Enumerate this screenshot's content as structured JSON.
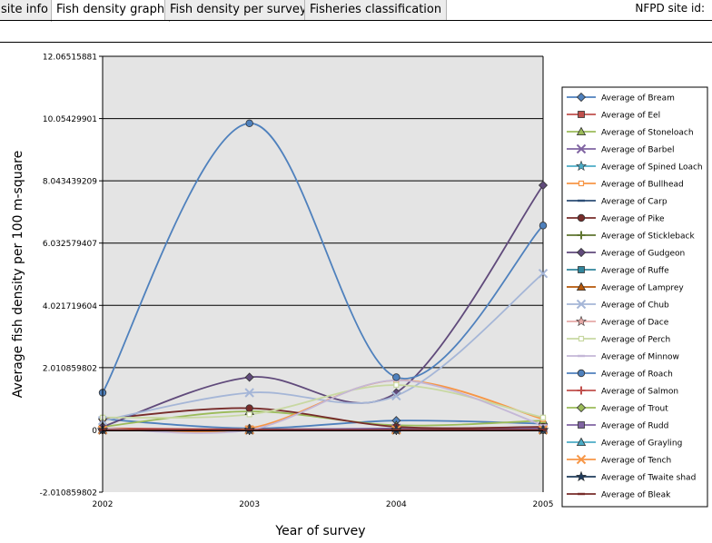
{
  "tabs": [
    {
      "label": "site info",
      "active": false
    },
    {
      "label": "Fish density graph",
      "active": true
    },
    {
      "label": "Fish density per survey",
      "active": false
    },
    {
      "label": "Fisheries classification",
      "active": false
    }
  ],
  "site_id_label": "NFPD site id:",
  "chart_data": {
    "type": "line",
    "xlabel": "Year of survey",
    "ylabel": "Average fish density per 100 m-square",
    "categories": [
      "2002",
      "2003",
      "2004",
      "2005"
    ],
    "yticks": [
      "12.06515881",
      "10.05429901",
      "8.043439209",
      "6.032579407",
      "4.021719604",
      "2.010859802",
      "0",
      "-2.010859802"
    ],
    "ylim": [
      -2.010859802,
      12.06515881
    ],
    "grid": true,
    "legend_position": "right",
    "smooth": true,
    "series": [
      {
        "name": "Average of Bream",
        "color": "#4f81bd",
        "marker": "diamond",
        "values": [
          0.35,
          0.05,
          0.3,
          0.2
        ]
      },
      {
        "name": "Average of Eel",
        "color": "#c0504d",
        "marker": "square",
        "values": [
          0.05,
          0.02,
          0.03,
          0.02
        ]
      },
      {
        "name": "Average of Stoneloach",
        "color": "#9bbb59",
        "marker": "triangle",
        "values": [
          0.1,
          0.6,
          0.15,
          0.3
        ]
      },
      {
        "name": "Average of Barbel",
        "color": "#8064a2",
        "marker": "x",
        "values": [
          0.0,
          0.0,
          0.05,
          0.05
        ]
      },
      {
        "name": "Average of Spined Loach",
        "color": "#4bacc6",
        "marker": "star",
        "values": [
          0.0,
          0.0,
          0.0,
          0.0
        ]
      },
      {
        "name": "Average of Bullhead",
        "color": "#f79646",
        "marker": "smallsquare",
        "values": [
          0.05,
          0.05,
          1.6,
          0.35
        ]
      },
      {
        "name": "Average of Carp",
        "color": "#2c4d75",
        "marker": "dash",
        "values": [
          0.0,
          0.0,
          0.0,
          0.0
        ]
      },
      {
        "name": "Average of Pike",
        "color": "#772c2a",
        "marker": "circle",
        "values": [
          0.35,
          0.7,
          0.1,
          0.1
        ]
      },
      {
        "name": "Average of Stickleback",
        "color": "#5f7530",
        "marker": "plus",
        "values": [
          0.0,
          0.0,
          0.0,
          0.0
        ]
      },
      {
        "name": "Average of Gudgeon",
        "color": "#604a7b",
        "marker": "diamond",
        "values": [
          0.1,
          1.7,
          1.2,
          7.9
        ]
      },
      {
        "name": "Average of Ruffe",
        "color": "#31859c",
        "marker": "square",
        "values": [
          0.0,
          0.0,
          0.0,
          0.0
        ]
      },
      {
        "name": "Average of Lamprey",
        "color": "#b65708",
        "marker": "triangle",
        "values": [
          0.0,
          0.0,
          0.0,
          0.0
        ]
      },
      {
        "name": "Average of Chub",
        "color": "#a5b6d7",
        "marker": "x",
        "values": [
          0.3,
          1.2,
          1.1,
          5.05
        ]
      },
      {
        "name": "Average of Dace",
        "color": "#e6a9a7",
        "marker": "star",
        "values": [
          0.0,
          0.0,
          0.0,
          0.0
        ]
      },
      {
        "name": "Average of Perch",
        "color": "#c8d8a2",
        "marker": "smallsquare",
        "values": [
          0.4,
          0.5,
          1.45,
          0.4
        ]
      },
      {
        "name": "Average of Minnow",
        "color": "#c4b7d7",
        "marker": "dash",
        "values": [
          0.05,
          0.0,
          1.6,
          0.15
        ]
      },
      {
        "name": "Average of Roach",
        "color": "#4f81bd",
        "marker": "circle",
        "values": [
          1.2,
          9.9,
          1.7,
          6.6
        ]
      },
      {
        "name": "Average of Salmon",
        "color": "#c0504d",
        "marker": "plus",
        "values": [
          0.0,
          0.0,
          0.0,
          0.0
        ]
      },
      {
        "name": "Average of Trout",
        "color": "#9bbb59",
        "marker": "diamond",
        "values": [
          0.0,
          0.0,
          0.0,
          0.0
        ]
      },
      {
        "name": "Average of Rudd",
        "color": "#8064a2",
        "marker": "square",
        "values": [
          0.0,
          0.0,
          0.0,
          0.0
        ]
      },
      {
        "name": "Average of Grayling",
        "color": "#4bacc6",
        "marker": "triangle",
        "values": [
          0.0,
          0.0,
          0.0,
          0.0
        ]
      },
      {
        "name": "Average of Tench",
        "color": "#f79646",
        "marker": "x",
        "values": [
          0.0,
          0.0,
          0.0,
          0.0
        ]
      },
      {
        "name": "Average of Twaite shad",
        "color": "#1f3b5c",
        "marker": "star",
        "values": [
          0.0,
          0.0,
          0.0,
          0.0
        ]
      },
      {
        "name": "Average of Bleak",
        "color": "#772c2a",
        "marker": "dash",
        "values": [
          0.0,
          0.0,
          0.0,
          0.0
        ]
      }
    ]
  }
}
